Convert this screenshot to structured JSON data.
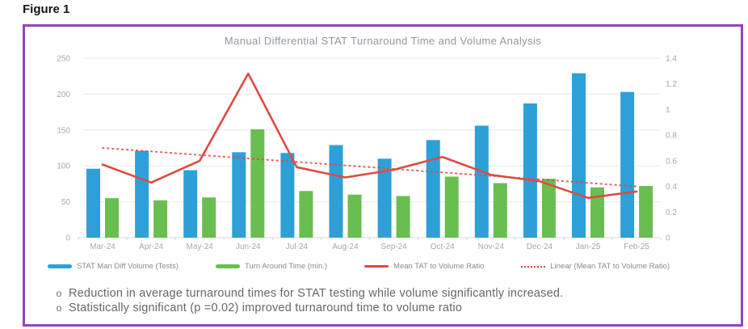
{
  "figure": {
    "label": "Figure 1"
  },
  "chart_data": {
    "type": "bar",
    "subtype": "clustered-bars-with-lines",
    "title": "Manual Differential STAT Turnaround Time and Volume Analysis",
    "categories": [
      "Mar-24",
      "Apr-24",
      "May-24",
      "Jun-24",
      "Jul-24",
      "Aug-24",
      "Sep-24",
      "Oct-24",
      "Nov-24",
      "Dec-24",
      "Jan-25",
      "Feb-25"
    ],
    "series": [
      {
        "name": "STAT Man Diff Volume (Tests)",
        "type": "bar",
        "axis": "left",
        "color": "#2DA0D8",
        "values": [
          96,
          121,
          94,
          119,
          118,
          129,
          110,
          136,
          156,
          187,
          229,
          203
        ]
      },
      {
        "name": "Turn Around Time (min.)",
        "type": "bar",
        "axis": "left",
        "color": "#69BE50",
        "values": [
          55,
          52,
          56,
          151,
          65,
          60,
          58,
          85,
          76,
          82,
          70,
          72
        ]
      },
      {
        "name": "Mean TAT to Volume Ratio",
        "type": "line",
        "axis": "right",
        "color": "#DD4B43",
        "values": [
          0.57,
          0.43,
          0.6,
          1.28,
          0.55,
          0.47,
          0.53,
          0.63,
          0.49,
          0.44,
          0.31,
          0.36
        ]
      },
      {
        "name": "Linear (Mean TAT to Volume Ratio)",
        "type": "line-dotted",
        "axis": "right",
        "color": "#DD4B43",
        "values": [
          0.7,
          0.673,
          0.645,
          0.618,
          0.591,
          0.564,
          0.536,
          0.509,
          0.482,
          0.455,
          0.427,
          0.4
        ]
      }
    ],
    "left_axis": {
      "max": 250,
      "ticks": [
        0,
        50,
        100,
        150,
        200,
        250
      ],
      "tick_labels": [
        "0",
        "50",
        "100",
        "150",
        "200",
        "250"
      ]
    },
    "right_axis": {
      "max": 1.4,
      "ticks": [
        0,
        0.2,
        0.4,
        0.6,
        0.8,
        1,
        1.2,
        1.4
      ],
      "tick_labels": [
        "0",
        "0.2",
        "0.4",
        "0.6",
        "0.8",
        "1",
        "1.2",
        "1.4"
      ]
    },
    "grid": "horizontal",
    "legend_position": "bottom"
  },
  "notes": {
    "marker": "o",
    "items": [
      "Reduction in average turnaround times for STAT testing while volume significantly increased.",
      "Statistically significant (p =0.02) improved turnaround time to volume ratio"
    ]
  },
  "colors": {
    "volume_bar": "#2DA0D8",
    "tat_bar": "#69BE50",
    "ratio_line": "#DD4B43",
    "trend_line": "#DD4B43",
    "frame_border": "#9144BD",
    "title_text": "#8F96A0",
    "axis_text": "#A7A7AC",
    "grid_line": "#ECECEF",
    "axis_line": "#D8D8DC",
    "note_text": "#65676C",
    "legend_text": "#8A8A8F"
  }
}
